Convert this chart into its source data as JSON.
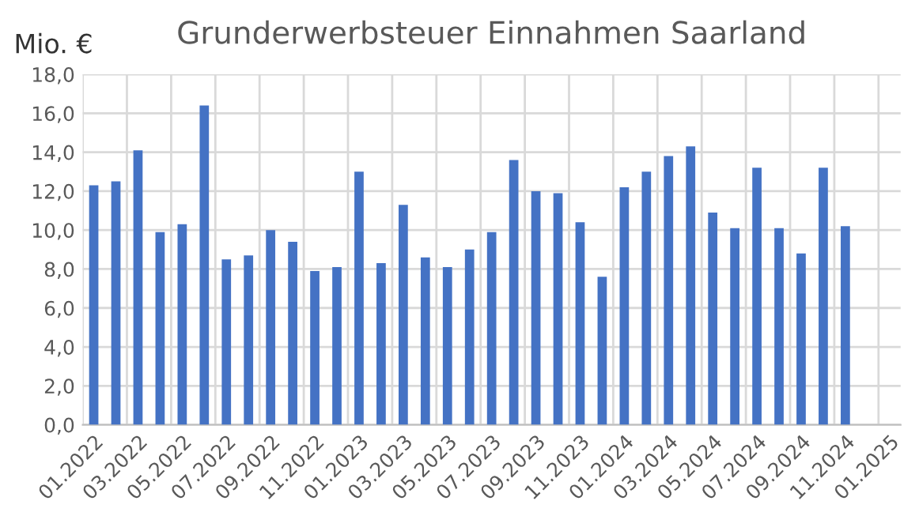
{
  "chart_data": {
    "type": "bar",
    "title": "Grunderwerbsteuer Einnahmen Saarland",
    "ylabel": "Mio. €",
    "categories": [
      "01.2022",
      null,
      "03.2022",
      null,
      "05.2022",
      null,
      "07.2022",
      null,
      "09.2022",
      null,
      "11.2022",
      null,
      "01.2023",
      null,
      "03.2023",
      null,
      "05.2023",
      null,
      "07.2023",
      null,
      "09.2023",
      null,
      "11.2023",
      null,
      "01.2024",
      null,
      "03.2024",
      null,
      "05.2024",
      null,
      "07.2024",
      null,
      "09.2024",
      null,
      "11.2024",
      null,
      "01.2025"
    ],
    "values": [
      12.3,
      12.5,
      14.1,
      9.9,
      10.3,
      16.4,
      8.5,
      8.7,
      10.0,
      9.4,
      7.9,
      8.1,
      13.0,
      8.3,
      11.3,
      8.6,
      8.1,
      9.0,
      9.9,
      13.6,
      12.0,
      11.9,
      10.4,
      7.6,
      12.2,
      13.0,
      13.8,
      14.3,
      10.9,
      10.1,
      13.2,
      10.1,
      8.8,
      13.2,
      10.2,
      null,
      null
    ],
    "color": "#4472c4",
    "ylim": [
      0,
      18
    ],
    "yticks": [
      {
        "value": 0,
        "label": "0,0"
      },
      {
        "value": 2,
        "label": "2,0"
      },
      {
        "value": 4,
        "label": "4,0"
      },
      {
        "value": 6,
        "label": "6,0"
      },
      {
        "value": 8,
        "label": "8,0"
      },
      {
        "value": 10,
        "label": "10,0"
      },
      {
        "value": 12,
        "label": "12,0"
      },
      {
        "value": 14,
        "label": "14,0"
      },
      {
        "value": 16,
        "label": "16,0"
      },
      {
        "value": 18,
        "label": "18,0"
      }
    ],
    "grid": true
  }
}
